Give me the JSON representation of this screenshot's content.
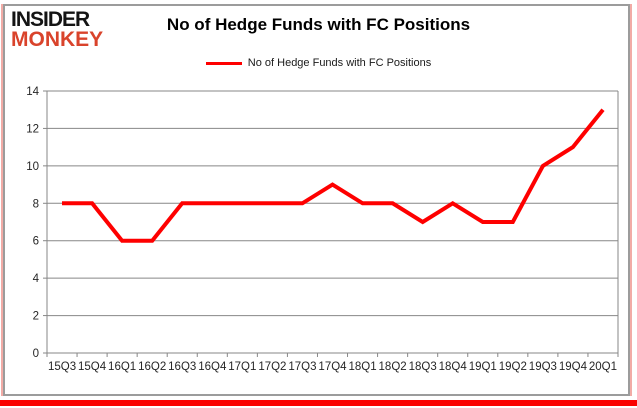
{
  "branding": {
    "logo_line1": "INSIDER",
    "logo_line2": "MONKEY",
    "logo_color_primary": "#141414",
    "logo_color_secondary": "#d9432b"
  },
  "header": {
    "title": "No of Hedge Funds with FC Positions"
  },
  "legend": {
    "label": "No of Hedge Funds with FC Positions",
    "swatch_color": "#fe0000",
    "position": "top"
  },
  "chart_data": {
    "type": "line",
    "title": "No of Hedge Funds with FC Positions",
    "categories": [
      "15Q3",
      "15Q4",
      "16Q1",
      "16Q2",
      "16Q3",
      "16Q4",
      "17Q1",
      "17Q2",
      "17Q3",
      "17Q4",
      "18Q1",
      "18Q2",
      "18Q3",
      "18Q4",
      "19Q1",
      "19Q2",
      "19Q3",
      "19Q4",
      "20Q1"
    ],
    "series": [
      {
        "name": "No of Hedge Funds with FC Positions",
        "values": [
          8,
          8,
          6,
          6,
          8,
          8,
          8,
          8,
          8,
          9,
          8,
          8,
          7,
          8,
          7,
          7,
          10,
          11,
          13
        ]
      }
    ],
    "xlabel": "",
    "ylabel": "",
    "ylim": [
      0,
      14
    ],
    "ytick_interval": 2,
    "yticks": [
      0,
      2,
      4,
      6,
      8,
      10,
      12,
      14
    ],
    "grid": true,
    "legend_position": "top",
    "line_color": "#fe0000",
    "gridline_color": "#878787",
    "axis_label_color": "#262626"
  },
  "frame": {
    "border_color": "#9c9c9c",
    "side_glow_color": "#f2aba6",
    "bottom_bar_color": "#fa0200"
  }
}
